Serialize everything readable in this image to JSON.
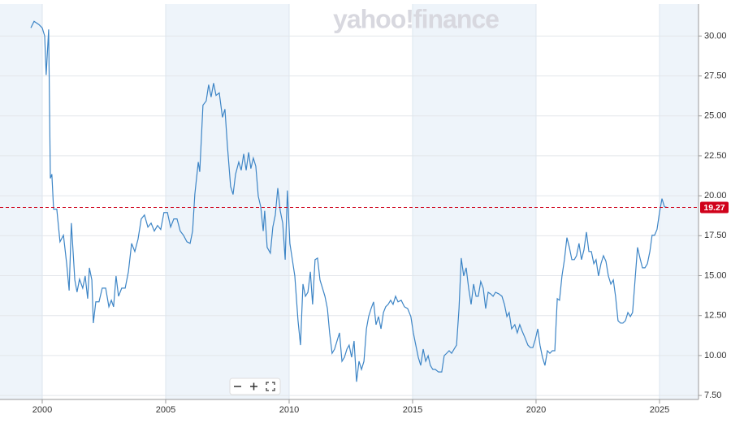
{
  "chart_data": {
    "type": "line",
    "watermark": "yahoo!finance",
    "color": "#3d85c6",
    "x": [
      1999.54,
      1999.67,
      1999.87,
      2000.0,
      2000.1,
      2000.16,
      2000.26,
      2000.33,
      2000.39,
      2000.46,
      2000.59,
      2000.72,
      2000.86,
      2000.99,
      2001.09,
      2001.18,
      2001.32,
      2001.41,
      2001.51,
      2001.64,
      2001.74,
      2001.84,
      2001.91,
      2002.01,
      2002.07,
      2002.17,
      2002.3,
      2002.43,
      2002.57,
      2002.7,
      2002.8,
      2002.89,
      2002.99,
      2003.09,
      2003.22,
      2003.36,
      2003.49,
      2003.62,
      2003.75,
      2003.88,
      2004.01,
      2004.14,
      2004.28,
      2004.41,
      2004.54,
      2004.67,
      2004.8,
      2004.93,
      2005.07,
      2005.2,
      2005.33,
      2005.46,
      2005.59,
      2005.72,
      2005.86,
      2005.99,
      2006.09,
      2006.18,
      2006.32,
      2006.38,
      2006.51,
      2006.64,
      2006.74,
      2006.84,
      2006.94,
      2007.04,
      2007.17,
      2007.3,
      2007.4,
      2007.5,
      2007.63,
      2007.73,
      2007.83,
      2007.96,
      2008.06,
      2008.16,
      2008.26,
      2008.36,
      2008.45,
      2008.55,
      2008.65,
      2008.75,
      2008.85,
      2008.95,
      2009.01,
      2009.11,
      2009.24,
      2009.34,
      2009.44,
      2009.54,
      2009.64,
      2009.74,
      2009.84,
      2009.93,
      2010.03,
      2010.13,
      2010.23,
      2010.36,
      2010.46,
      2010.56,
      2010.66,
      2010.76,
      2010.86,
      2010.95,
      2011.05,
      2011.15,
      2011.25,
      2011.35,
      2011.45,
      2011.55,
      2011.64,
      2011.74,
      2011.84,
      2011.94,
      2012.04,
      2012.14,
      2012.24,
      2012.34,
      2012.43,
      2012.53,
      2012.63,
      2012.73,
      2012.83,
      2012.93,
      2013.03,
      2013.13,
      2013.22,
      2013.32,
      2013.42,
      2013.52,
      2013.62,
      2013.72,
      2013.82,
      2013.91,
      2014.01,
      2014.11,
      2014.21,
      2014.31,
      2014.41,
      2014.54,
      2014.67,
      2014.8,
      2014.93,
      2015.03,
      2015.13,
      2015.23,
      2015.33,
      2015.43,
      2015.53,
      2015.63,
      2015.72,
      2015.82,
      2015.92,
      2016.05,
      2016.18,
      2016.28,
      2016.38,
      2016.48,
      2016.58,
      2016.68,
      2016.78,
      2016.88,
      2016.97,
      2017.07,
      2017.17,
      2017.27,
      2017.37,
      2017.47,
      2017.57,
      2017.66,
      2017.76,
      2017.86,
      2017.96,
      2018.06,
      2018.16,
      2018.26,
      2018.36,
      2018.49,
      2018.62,
      2018.72,
      2018.82,
      2018.91,
      2019.01,
      2019.14,
      2019.24,
      2019.34,
      2019.44,
      2019.54,
      2019.67,
      2019.77,
      2019.87,
      2019.97,
      2020.07,
      2020.16,
      2020.26,
      2020.36,
      2020.46,
      2020.56,
      2020.66,
      2020.76,
      2020.86,
      2020.95,
      2021.05,
      2021.15,
      2021.25,
      2021.35,
      2021.45,
      2021.55,
      2021.64,
      2021.74,
      2021.84,
      2021.94,
      2022.04,
      2022.14,
      2022.24,
      2022.34,
      2022.43,
      2022.53,
      2022.63,
      2022.73,
      2022.83,
      2022.93,
      2023.03,
      2023.13,
      2023.22,
      2023.32,
      2023.42,
      2023.52,
      2023.62,
      2023.72,
      2023.82,
      2023.91,
      2024.01,
      2024.11,
      2024.21,
      2024.31,
      2024.41,
      2024.51,
      2024.61,
      2024.7,
      2024.8,
      2024.9,
      2025.0,
      2025.1,
      2025.2,
      2025.3
    ],
    "values": [
      30.51,
      30.92,
      30.71,
      30.51,
      30.0,
      27.56,
      30.41,
      21.09,
      21.35,
      19.16,
      19.16,
      17.12,
      17.53,
      15.75,
      14.07,
      18.29,
      14.73,
      13.97,
      14.78,
      14.22,
      14.98,
      13.56,
      15.49,
      14.73,
      12.03,
      13.36,
      13.36,
      14.22,
      14.22,
      13.05,
      13.46,
      13.05,
      14.98,
      13.71,
      14.22,
      14.22,
      15.24,
      17.02,
      16.51,
      17.28,
      18.55,
      18.8,
      18.04,
      18.29,
      17.79,
      18.14,
      17.89,
      18.95,
      18.95,
      18.04,
      18.55,
      18.55,
      17.79,
      17.53,
      17.12,
      17.02,
      17.79,
      20.08,
      22.11,
      21.5,
      25.67,
      25.93,
      26.95,
      26.18,
      27.05,
      26.28,
      26.44,
      24.91,
      25.42,
      23.13,
      20.58,
      20.08,
      21.35,
      22.11,
      21.6,
      22.62,
      21.6,
      22.72,
      21.7,
      22.36,
      21.85,
      19.97,
      19.31,
      17.79,
      19.06,
      16.77,
      16.41,
      18.04,
      18.8,
      20.48,
      19.06,
      18.29,
      16.0,
      20.33,
      17.02,
      16.0,
      14.98,
      12.18,
      10.65,
      14.47,
      13.71,
      13.96,
      15.24,
      13.2,
      16.0,
      16.1,
      14.73,
      14.22,
      13.71,
      12.94,
      11.42,
      10.14,
      10.4,
      10.91,
      11.42,
      9.64,
      9.89,
      10.4,
      10.65,
      9.89,
      10.91,
      8.36,
      9.64,
      9.13,
      9.64,
      11.67,
      12.44,
      12.94,
      13.36,
      11.93,
      12.44,
      11.67,
      12.69,
      13.05,
      13.2,
      13.46,
      13.2,
      13.71,
      13.36,
      13.46,
      13.05,
      12.94,
      12.44,
      11.42,
      10.65,
      9.89,
      9.38,
      10.4,
      9.64,
      9.99,
      9.38,
      9.13,
      9.13,
      8.97,
      8.97,
      9.99,
      10.14,
      10.3,
      10.14,
      10.4,
      10.65,
      12.94,
      16.1,
      14.98,
      15.49,
      14.22,
      13.2,
      14.47,
      13.71,
      13.71,
      14.63,
      14.22,
      12.94,
      13.96,
      13.86,
      13.71,
      13.96,
      13.86,
      13.71,
      13.2,
      12.44,
      12.69,
      11.67,
      11.93,
      11.42,
      11.93,
      11.52,
      11.16,
      10.65,
      10.5,
      10.5,
      11.01,
      11.67,
      10.65,
      9.89,
      9.38,
      10.3,
      10.14,
      10.3,
      10.3,
      13.56,
      13.46,
      14.98,
      16.0,
      17.38,
      16.77,
      16.0,
      16.0,
      16.25,
      17.02,
      16.0,
      16.61,
      17.73,
      16.51,
      16.51,
      15.75,
      16.0,
      14.98,
      15.75,
      16.25,
      15.9,
      14.98,
      14.47,
      14.73,
      13.71,
      12.18,
      12.03,
      12.03,
      12.18,
      12.69,
      12.44,
      12.69,
      14.73,
      16.77,
      16.1,
      15.49,
      15.49,
      15.75,
      16.51,
      17.53,
      17.53,
      17.89,
      18.95,
      19.82,
      19.31,
      19.27
    ],
    "current_value": 19.27,
    "xlim": [
      1998.29,
      2026.58
    ],
    "xticks": [
      2000,
      2005,
      2010,
      2015,
      2020,
      2025
    ],
    "ylim": [
      7.25,
      32
    ],
    "yticks": [
      {
        "value": 7.5,
        "label": "7.50"
      },
      {
        "value": 10,
        "label": "10.00"
      },
      {
        "value": 12.5,
        "label": "12.50"
      },
      {
        "value": 15,
        "label": "15.00"
      },
      {
        "value": 17.5,
        "label": "17.50"
      },
      {
        "value": 20,
        "label": "20.00"
      },
      {
        "value": 22.5,
        "label": "22.50"
      },
      {
        "value": 25,
        "label": "25.00"
      },
      {
        "value": 27.5,
        "label": "27.50"
      },
      {
        "value": 30,
        "label": "30.00"
      }
    ],
    "grid": true
  }
}
